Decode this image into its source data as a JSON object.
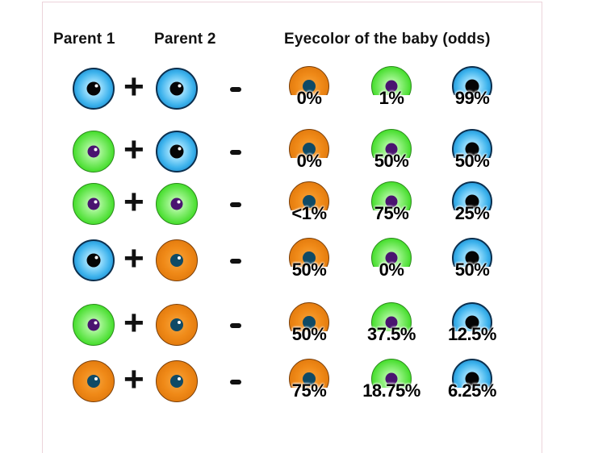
{
  "headers": {
    "parent1": "Parent 1",
    "parent2": "Parent 2",
    "offspring": "Eyecolor of the baby (odds)"
  },
  "symbols": {
    "plus": "+",
    "minus": "-"
  },
  "colors": {
    "blue": "#3cb2ec",
    "green": "#47de2e",
    "brown": "#f08a18",
    "text": "#111111"
  },
  "outcome_order": [
    "brown",
    "green",
    "blue"
  ],
  "rows": [
    {
      "parent1": "blue",
      "parent2": "blue",
      "odds": {
        "brown": "0%",
        "green": "1%",
        "blue": "99%"
      }
    },
    {
      "parent1": "green",
      "parent2": "blue",
      "odds": {
        "brown": "0%",
        "green": "50%",
        "blue": "50%"
      }
    },
    {
      "parent1": "green",
      "parent2": "green",
      "odds": {
        "brown": "<1%",
        "green": "75%",
        "blue": "25%"
      }
    },
    {
      "parent1": "blue",
      "parent2": "brown",
      "odds": {
        "brown": "50%",
        "green": "0%",
        "blue": "50%"
      }
    },
    {
      "parent1": "green",
      "parent2": "brown",
      "odds": {
        "brown": "50%",
        "green": "37.5%",
        "blue": "12.5%"
      }
    },
    {
      "parent1": "brown",
      "parent2": "brown",
      "odds": {
        "brown": "75%",
        "green": "18.75%",
        "blue": "6.25%"
      }
    }
  ]
}
